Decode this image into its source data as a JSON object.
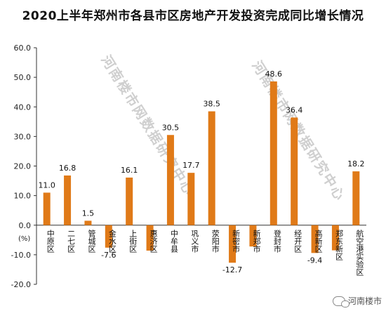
{
  "chart_data": {
    "type": "bar",
    "title": "2020上半年郑州市各县市区房地产开发投资完成同比增长情况",
    "ylabel": "(%)",
    "ylim": [
      -20,
      60
    ],
    "yticks": [
      "60.0",
      "50.0",
      "40.0",
      "30.0",
      "20.0",
      "10.0",
      "0.0",
      "-10.0",
      "-20.0"
    ],
    "categories": [
      "中原区",
      "二七区",
      "管城区",
      "金水区",
      "上街区",
      "惠济区",
      "中牟县",
      "巩义市",
      "荥阳市",
      "新密市",
      "新郑市",
      "登封市",
      "经开区",
      "高新区",
      "郑东新区",
      "航空港实验区"
    ],
    "values": [
      11.0,
      16.8,
      1.5,
      -7.6,
      16.1,
      -8.6,
      30.5,
      17.7,
      38.5,
      -12.7,
      -7.2,
      48.6,
      36.4,
      -9.4,
      -8.5,
      18.2
    ],
    "data_labels": [
      "11.0",
      "16.8",
      "1.5",
      "-7.6",
      "16.1",
      "",
      "30.5",
      "17.7",
      "38.5",
      "-12.7",
      "",
      "48.6",
      "36.4",
      "-9.4",
      "",
      "18.2"
    ],
    "bar_color": "#E07A18",
    "grid": false,
    "legend": "none"
  },
  "watermark": "河南楼市网数据研究中心",
  "footer": {
    "brand": "河南楼市"
  }
}
